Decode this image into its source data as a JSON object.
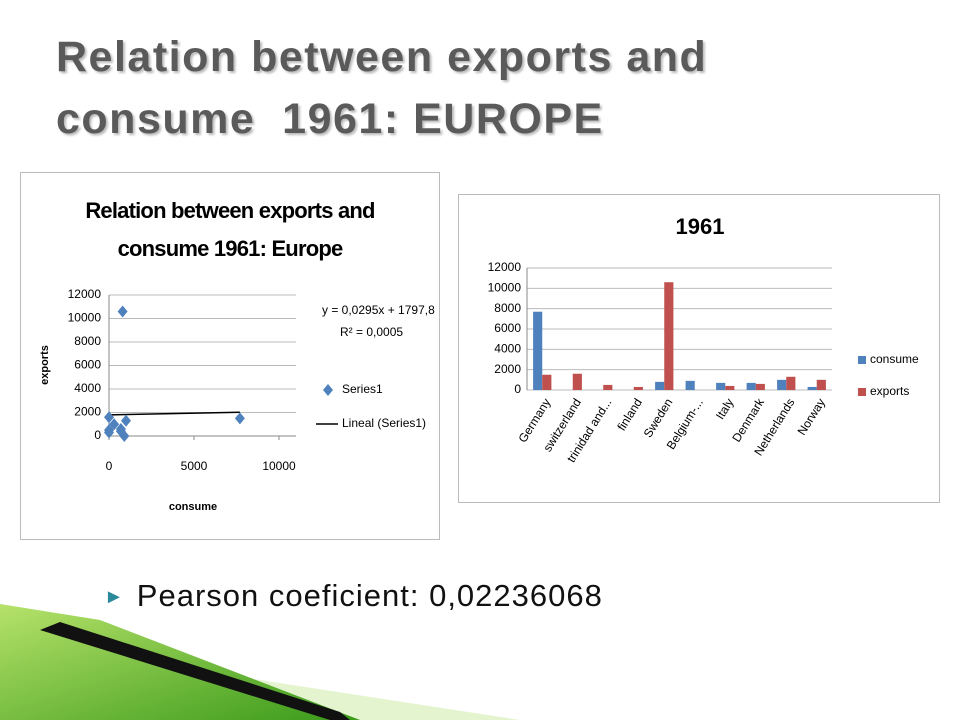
{
  "title": "Relation between exports and consume  1961: EUROPE",
  "bullet": {
    "label": "Pearson coeficient:",
    "value": "0,02236068"
  },
  "chart_data": [
    {
      "type": "scatter",
      "title": "Relation between exports and consume 1961: Europe",
      "x_label": "consume",
      "y_label": "exports",
      "x": [
        7700,
        0,
        0,
        0,
        800,
        900,
        700,
        700,
        1000,
        300
      ],
      "series": [
        {
          "name": "Series1",
          "color": "#4f81bd",
          "values": [
            1500,
            1600,
            500,
            300,
            10600,
            0,
            400,
            600,
            1300,
            1000
          ]
        }
      ],
      "trendline": {
        "name": "Lineal (Series1)",
        "slope": 0.0295,
        "intercept": 1797.8,
        "equation": "y = 0,0295x + 1797,8",
        "r_squared": "R² = 0,0005",
        "color": "#000000"
      },
      "xlim": [
        0,
        11000
      ],
      "xticks": [
        0,
        5000,
        10000
      ],
      "ylim": [
        0,
        12000
      ],
      "yticks": [
        0,
        2000,
        4000,
        6000,
        8000,
        10000,
        12000
      ],
      "grid": true
    },
    {
      "type": "bar",
      "title": "1961",
      "categories": [
        "Germany",
        "switzerland",
        "trinidad and...",
        "finland",
        "Sweden",
        "Belgium-...",
        "Italy",
        "Denmark",
        "Netherlands",
        "Norway"
      ],
      "series": [
        {
          "name": "consume",
          "color": "#4f81bd",
          "values": [
            7700,
            0,
            0,
            0,
            800,
            900,
            700,
            700,
            1000,
            300
          ]
        },
        {
          "name": "exports",
          "color": "#c0504d",
          "values": [
            1500,
            1600,
            500,
            300,
            10600,
            0,
            400,
            600,
            1300,
            1000
          ]
        }
      ],
      "ylim": [
        0,
        12000
      ],
      "yticks": [
        0,
        2000,
        4000,
        6000,
        8000,
        10000,
        12000
      ],
      "grid": true,
      "legend": "right"
    }
  ]
}
